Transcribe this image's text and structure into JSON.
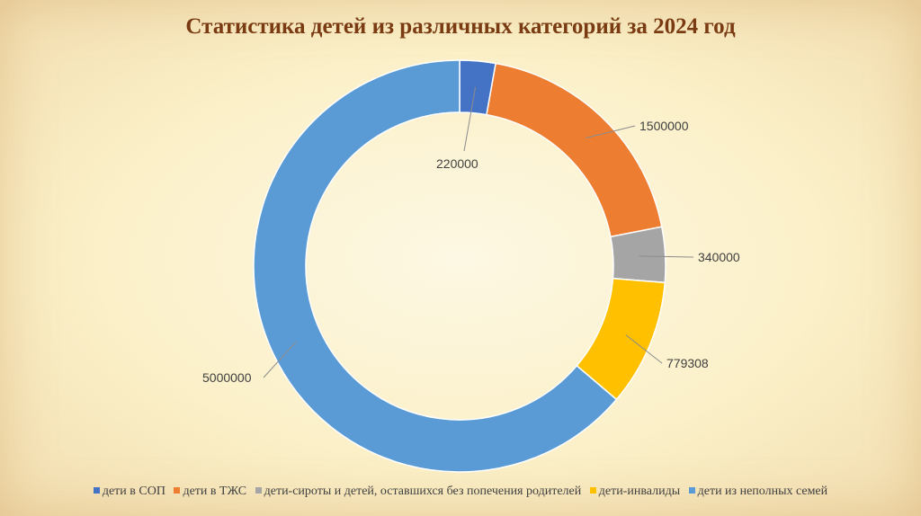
{
  "slide": {
    "title": "Статистика детей из различных категорий за 2024 год"
  },
  "chart_data": {
    "type": "pie",
    "variant": "doughnut",
    "title": "Статистика детей из различных категорий за 2024 год",
    "legend_position": "bottom",
    "categories": [
      "дети в СОП",
      "дети в ТЖС",
      "дети-сироты и детей, оставшихся без попечения родителей",
      "дети-инвалиды",
      "дети из неполных семей"
    ],
    "values": [
      220000,
      1500000,
      340000,
      779308,
      5000000
    ],
    "value_labels": [
      "220000",
      "1500000",
      "340000",
      "779308",
      "5000000"
    ],
    "colors": [
      "#4472c4",
      "#ed7d31",
      "#a5a5a5",
      "#ffc000",
      "#5b9bd5"
    ]
  }
}
